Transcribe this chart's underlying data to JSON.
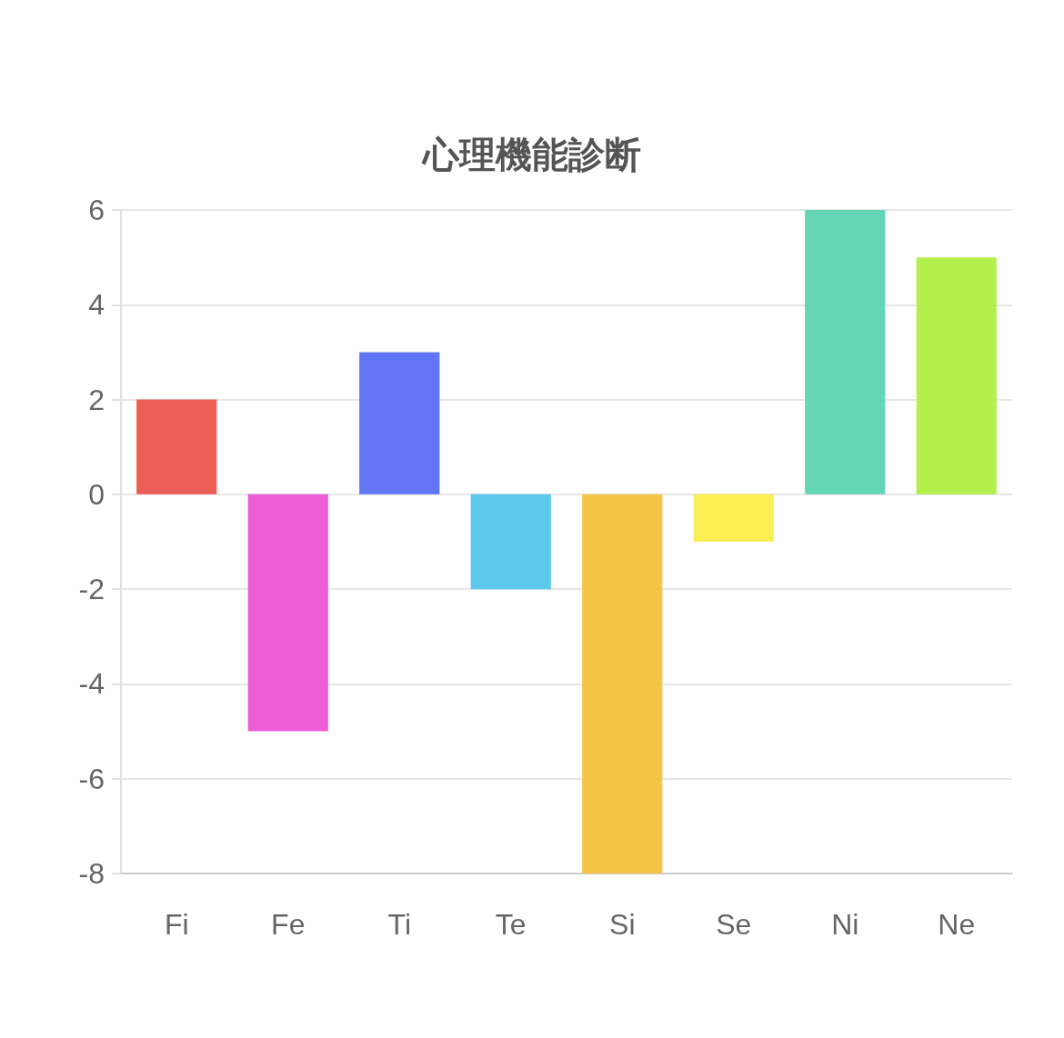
{
  "chart_data": {
    "type": "bar",
    "title": "心理機能診断",
    "categories": [
      "Fi",
      "Fe",
      "Ti",
      "Te",
      "Si",
      "Se",
      "Ni",
      "Ne"
    ],
    "values": [
      2,
      -5,
      3,
      -2,
      -8,
      -1,
      6,
      5
    ],
    "colors": [
      "#eb5e55",
      "#ec5dd8",
      "#6175f5",
      "#5dc8ee",
      "#f4c547",
      "#fcef55",
      "#64d6b6",
      "#b3f04d"
    ],
    "ylim": [
      -8,
      6
    ],
    "yticks": [
      -8,
      -6,
      -4,
      -2,
      0,
      2,
      4,
      6
    ],
    "grid": "y"
  }
}
